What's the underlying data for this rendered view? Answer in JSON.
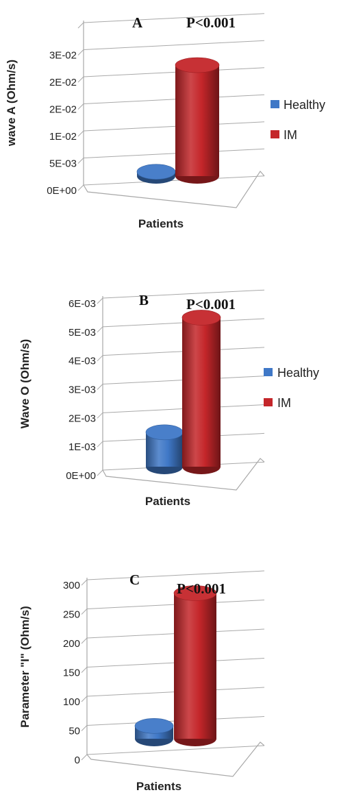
{
  "colors": {
    "healthy": "#3f78c7",
    "im": "#c4262a"
  },
  "chart_data": [
    {
      "type": "bar",
      "panel": "A",
      "annotation": "P<0.001",
      "xlabel": "Patients",
      "ylabel": "wave A (Ohm/s)",
      "ylim": [
        0,
        0.03
      ],
      "y_ticks": [
        "0E+00",
        "5E-03",
        "1E-02",
        "2E-02",
        "2E-02",
        "3E-02"
      ],
      "y_tick_values": [
        0,
        0.005,
        0.01,
        0.015,
        0.02,
        0.025
      ],
      "series": [
        {
          "name": "Healthy",
          "values": [
            0.0008
          ]
        },
        {
          "name": "IM",
          "values": [
            0.0205
          ]
        }
      ],
      "legend": [
        "Healthy",
        "IM"
      ],
      "legend_position": "right",
      "grid": true
    },
    {
      "type": "bar",
      "panel": "B",
      "annotation": "P<0.001",
      "xlabel": "Patients",
      "ylabel": "Wave O (Ohm/s)",
      "ylim": [
        0,
        0.006
      ],
      "y_ticks": [
        "0E+00",
        "1E-03",
        "2E-03",
        "3E-03",
        "4E-03",
        "5E-03",
        "6E-03"
      ],
      "y_tick_values": [
        0,
        0.001,
        0.002,
        0.003,
        0.004,
        0.005,
        0.006
      ],
      "series": [
        {
          "name": "Healthy",
          "values": [
            0.0012
          ]
        },
        {
          "name": "IM",
          "values": [
            0.0052
          ]
        }
      ],
      "legend": [
        "Healthy",
        "IM"
      ],
      "legend_position": "right",
      "grid": true
    },
    {
      "type": "bar",
      "panel": "C",
      "annotation": "P<0.001",
      "xlabel": "Patients",
      "ylabel": "Parameter \"I\" (Ohm/s)",
      "ylim": [
        0,
        300
      ],
      "y_ticks": [
        "0",
        "50",
        "100",
        "150",
        "200",
        "250",
        "300"
      ],
      "y_tick_values": [
        0,
        50,
        100,
        150,
        200,
        250,
        300
      ],
      "series": [
        {
          "name": "Healthy",
          "values": [
            22
          ]
        },
        {
          "name": "IM",
          "values": [
            250
          ]
        }
      ],
      "legend": [],
      "legend_position": "none",
      "grid": true
    }
  ]
}
